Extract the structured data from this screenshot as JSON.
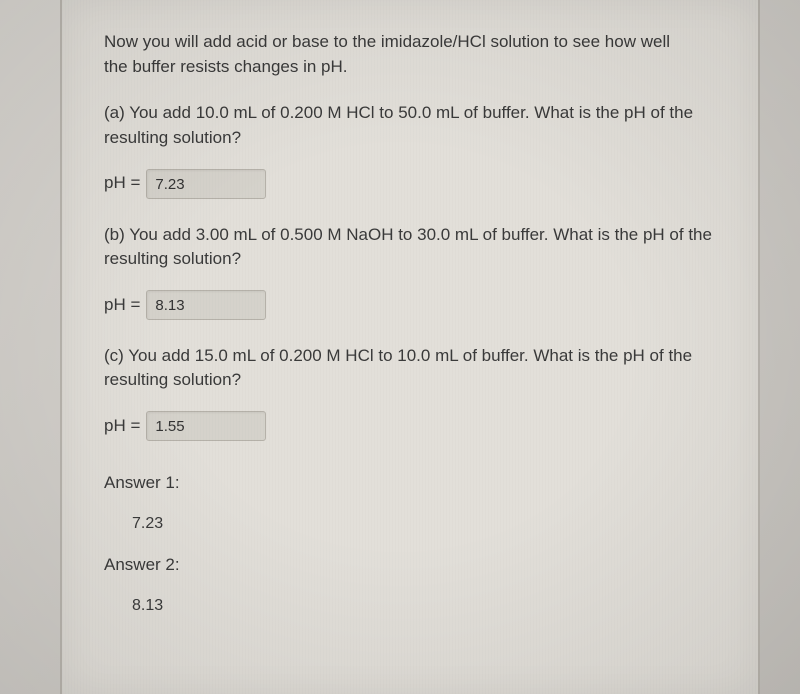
{
  "colors": {
    "page_bg": "#d8d5d0",
    "sheet_bg": "#e2dfd9",
    "sheet_border": "#b8b4ad",
    "text": "#3a3a3a",
    "input_bg": "#d5d2cb",
    "input_border": "#b5b1a9"
  },
  "intro": {
    "line1": "Now you will add acid or base to the imidazole/HCl solution to see how well",
    "line2": "the buffer resists changes in pH."
  },
  "parts": {
    "a": {
      "text": "(a) You add 10.0 mL of 0.200 M HCl to 50.0 mL of buffer. What is the pH of the resulting solution?",
      "label": "pH =",
      "value": "7.23"
    },
    "b": {
      "text": "(b) You add 3.00 mL of 0.500 M NaOH to 30.0 mL of buffer. What is the pH of the resulting solution?",
      "label": "pH =",
      "value": "8.13"
    },
    "c": {
      "text": "(c) You add 15.0 mL of 0.200 M HCl to 10.0 mL of buffer. What is the pH of the resulting solution?",
      "label": "pH =",
      "value": "1.55"
    }
  },
  "answers": {
    "a1_label": "Answer 1:",
    "a1_value": "7.23",
    "a2_label": "Answer 2:",
    "a2_value": "8.13"
  }
}
